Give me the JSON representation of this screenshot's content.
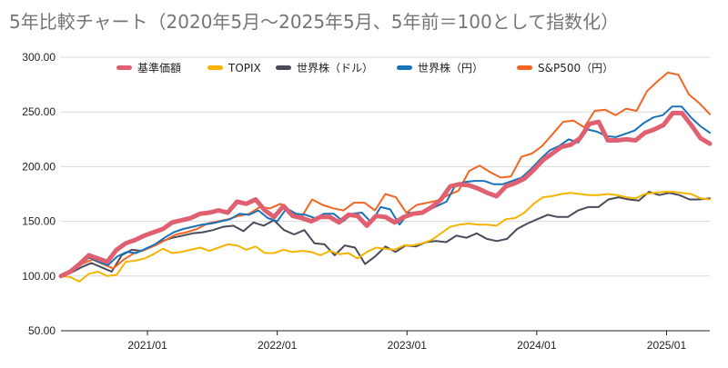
{
  "chart_data": {
    "type": "line",
    "title": "5年比較チャート（2020年5月〜2025年5月、5年前＝100として指数化）",
    "xlabel": "",
    "ylabel": "",
    "x_start": "2020/05",
    "x_end": "2025/05",
    "ylim": [
      50,
      300
    ],
    "y_ticks": [
      50,
      100,
      150,
      200,
      250,
      300
    ],
    "y_tick_labels": [
      "50.00",
      "100.00",
      "150.00",
      "200.00",
      "250.00",
      "300.00"
    ],
    "x_ticks": [
      "2021/01",
      "2022/01",
      "2023/01",
      "2024/01",
      "2025/01"
    ],
    "grid": "horizontal",
    "legend_position": "top",
    "series": [
      {
        "name": "基準価額",
        "color": "#e06072",
        "emphasis": true,
        "values": [
          100,
          104,
          111,
          119,
          116,
          113,
          124,
          130,
          133,
          137,
          140,
          143,
          149,
          151,
          153,
          157,
          158,
          160,
          158,
          168,
          166,
          170,
          160,
          154,
          164,
          155,
          153,
          150,
          154,
          154,
          149,
          156,
          155,
          146,
          155,
          154,
          149,
          154,
          157,
          158,
          163,
          170,
          182,
          184,
          183,
          180,
          176,
          173,
          182,
          185,
          189,
          197,
          206,
          212,
          218,
          220,
          226,
          239,
          241,
          224,
          224,
          225,
          224,
          231,
          234,
          238,
          249,
          249,
          238,
          226,
          221
        ]
      },
      {
        "name": "TOPIX",
        "color": "#f4b400",
        "values": [
          100,
          99,
          95,
          102,
          104,
          100,
          101,
          113,
          114,
          116,
          120,
          125,
          121,
          122,
          124,
          126,
          123,
          126,
          129,
          128,
          124,
          127,
          121,
          121,
          124,
          122,
          123,
          122,
          119,
          123,
          120,
          121,
          116,
          122,
          126,
          125,
          124,
          128,
          128,
          130,
          133,
          139,
          145,
          147,
          148,
          147,
          147,
          146,
          152,
          153,
          158,
          166,
          172,
          173,
          175,
          176,
          175,
          174,
          174,
          175,
          174,
          172,
          171,
          175,
          176,
          177,
          177,
          176,
          175,
          171,
          170
        ]
      },
      {
        "name": "世界株（ドル）",
        "color": "#4a4a5a",
        "values": [
          100,
          103,
          108,
          112,
          108,
          104,
          119,
          124,
          123,
          127,
          132,
          135,
          137,
          139,
          140,
          142,
          145,
          146,
          141,
          149,
          146,
          151,
          142,
          138,
          142,
          130,
          129,
          119,
          128,
          126,
          111,
          118,
          127,
          122,
          128,
          127,
          131,
          132,
          131,
          137,
          135,
          139,
          134,
          132,
          134,
          143,
          148,
          152,
          156,
          154,
          154,
          160,
          163,
          163,
          170,
          172,
          170,
          169,
          177,
          174,
          176,
          174,
          170,
          170,
          171
        ]
      },
      {
        "name": "世界株（円）",
        "color": "#1a73b8",
        "values": [
          100,
          103,
          110,
          117,
          113,
          110,
          118,
          122,
          121,
          125,
          129,
          135,
          140,
          143,
          145,
          147,
          148,
          150,
          152,
          157,
          156,
          160,
          153,
          150,
          162,
          157,
          156,
          153,
          157,
          157,
          150,
          157,
          158,
          149,
          163,
          161,
          147,
          158,
          157,
          160,
          164,
          168,
          184,
          186,
          187,
          187,
          184,
          184,
          187,
          190,
          198,
          207,
          215,
          219,
          225,
          222,
          234,
          232,
          228,
          227,
          230,
          233,
          240,
          245,
          247,
          255,
          255,
          245,
          237,
          231
        ]
      },
      {
        "name": "S&P500（円）",
        "color": "#f26522",
        "values": [
          100,
          104,
          111,
          115,
          111,
          107,
          115,
          121,
          124,
          128,
          133,
          138,
          140,
          143,
          148,
          150,
          152,
          155,
          157,
          163,
          162,
          166,
          158,
          154,
          170,
          165,
          162,
          160,
          167,
          167,
          160,
          175,
          172,
          158,
          165,
          167,
          169,
          174,
          178,
          196,
          201,
          195,
          190,
          191,
          209,
          212,
          219,
          230,
          241,
          242,
          236,
          251,
          252,
          247,
          253,
          251,
          269,
          278,
          286,
          284,
          266,
          258,
          248
        ]
      }
    ]
  }
}
